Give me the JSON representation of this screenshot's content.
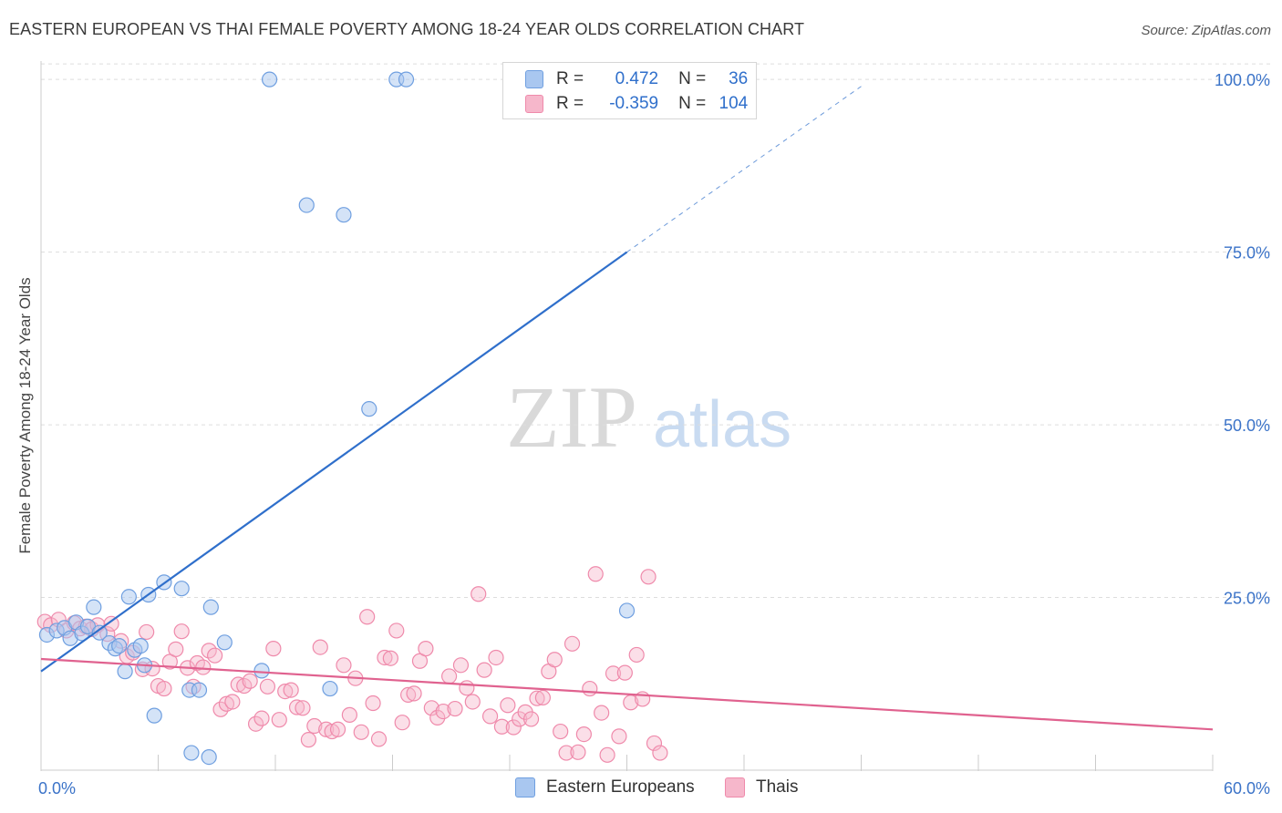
{
  "title": "EASTERN EUROPEAN VS THAI FEMALE POVERTY AMONG 18-24 YEAR OLDS CORRELATION CHART",
  "source": "Source: ZipAtlas.com",
  "watermark": {
    "zip": "ZIP",
    "atlas": "atlas"
  },
  "legend": {
    "rows": [
      {
        "r_label": "R =",
        "r_value": "0.472",
        "n_label": "N =",
        "n_value": "36"
      },
      {
        "r_label": "R =",
        "r_value": "-0.359",
        "n_label": "N =",
        "n_value": "104"
      }
    ]
  },
  "colors": {
    "eastern_fill": "#a9c7f0",
    "eastern_stroke": "#6f9fe0",
    "eastern_line": "#2f6fcb",
    "thai_fill": "#f6b7cb",
    "thai_stroke": "#ef8aab",
    "thai_line": "#e0628f",
    "axis_text": "#3b73c8",
    "grid": "#dddddd"
  },
  "chart_data": {
    "type": "scatter",
    "title": "EASTERN EUROPEAN VS THAI FEMALE POVERTY AMONG 18-24 YEAR OLDS CORRELATION CHART",
    "ylabel": "Female Poverty Among 18-24 Year Olds",
    "xlabel": "",
    "xlim": [
      0,
      60
    ],
    "ylim": [
      0,
      102
    ],
    "x_tick_labels": [
      {
        "value": 0,
        "label": "0.0%"
      },
      {
        "value": 60,
        "label": "60.0%"
      }
    ],
    "y_tick_labels": [
      {
        "value": 25,
        "label": "25.0%"
      },
      {
        "value": 50,
        "label": "50.0%"
      },
      {
        "value": 75,
        "label": "75.0%"
      },
      {
        "value": 100,
        "label": "100.0%"
      }
    ],
    "grid": "horizontal dashed",
    "legend_position": "top-center",
    "series": [
      {
        "name": "Eastern Europeans",
        "R": 0.472,
        "N": 36,
        "trend": {
          "x": [
            0,
            30
          ],
          "y": [
            14.3,
            75
          ],
          "dashed_to": [
            42,
            99
          ]
        },
        "points": [
          [
            0.3,
            19.6
          ],
          [
            0.8,
            20.2
          ],
          [
            1.2,
            20.6
          ],
          [
            1.5,
            19.1
          ],
          [
            1.8,
            21.4
          ],
          [
            2.1,
            19.8
          ],
          [
            2.4,
            20.8
          ],
          [
            2.7,
            23.6
          ],
          [
            3.0,
            19.9
          ],
          [
            3.5,
            18.4
          ],
          [
            3.8,
            17.6
          ],
          [
            4.0,
            18.0
          ],
          [
            4.3,
            14.3
          ],
          [
            4.5,
            25.1
          ],
          [
            4.8,
            17.4
          ],
          [
            5.1,
            18.0
          ],
          [
            5.3,
            15.2
          ],
          [
            5.5,
            25.4
          ],
          [
            5.8,
            7.9
          ],
          [
            6.3,
            27.2
          ],
          [
            7.2,
            26.3
          ],
          [
            7.6,
            11.6
          ],
          [
            7.7,
            2.5
          ],
          [
            8.1,
            11.6
          ],
          [
            8.6,
            1.9
          ],
          [
            8.7,
            23.6
          ],
          [
            9.4,
            18.5
          ],
          [
            11.3,
            14.4
          ],
          [
            11.7,
            100
          ],
          [
            13.6,
            81.8
          ],
          [
            14.8,
            11.8
          ],
          [
            15.5,
            80.4
          ],
          [
            16.8,
            52.3
          ],
          [
            18.2,
            100
          ],
          [
            18.7,
            100
          ],
          [
            30,
            23.1
          ]
        ]
      },
      {
        "name": "Thais",
        "R": -0.359,
        "N": 104,
        "trend": {
          "x": [
            0,
            60
          ],
          "y": [
            16.1,
            5.9
          ]
        },
        "points": [
          [
            0.2,
            21.5
          ],
          [
            0.5,
            21.0
          ],
          [
            0.9,
            21.8
          ],
          [
            1.3,
            20.2
          ],
          [
            1.7,
            21.3
          ],
          [
            2.0,
            20.5
          ],
          [
            2.3,
            20.8
          ],
          [
            2.6,
            20.4
          ],
          [
            2.9,
            21.0
          ],
          [
            3.4,
            19.7
          ],
          [
            3.6,
            21.2
          ],
          [
            4.1,
            18.7
          ],
          [
            4.4,
            16.5
          ],
          [
            4.7,
            17.0
          ],
          [
            5.2,
            14.6
          ],
          [
            5.4,
            20.0
          ],
          [
            5.7,
            14.7
          ],
          [
            6.0,
            12.2
          ],
          [
            6.3,
            11.8
          ],
          [
            6.6,
            15.7
          ],
          [
            6.9,
            17.5
          ],
          [
            7.2,
            20.1
          ],
          [
            7.5,
            14.8
          ],
          [
            7.8,
            12.1
          ],
          [
            8.0,
            15.5
          ],
          [
            8.3,
            14.9
          ],
          [
            8.6,
            17.3
          ],
          [
            8.9,
            16.6
          ],
          [
            9.2,
            8.8
          ],
          [
            9.5,
            9.6
          ],
          [
            9.8,
            9.9
          ],
          [
            10.1,
            12.4
          ],
          [
            10.4,
            12.2
          ],
          [
            10.7,
            12.9
          ],
          [
            11.0,
            6.7
          ],
          [
            11.3,
            7.5
          ],
          [
            11.6,
            12.1
          ],
          [
            11.9,
            17.6
          ],
          [
            12.2,
            7.3
          ],
          [
            12.5,
            11.4
          ],
          [
            12.8,
            11.6
          ],
          [
            13.1,
            9.1
          ],
          [
            13.4,
            9.0
          ],
          [
            13.7,
            4.4
          ],
          [
            14.0,
            6.4
          ],
          [
            14.3,
            17.8
          ],
          [
            14.6,
            5.9
          ],
          [
            14.9,
            5.6
          ],
          [
            15.2,
            5.9
          ],
          [
            15.5,
            15.2
          ],
          [
            15.8,
            8.0
          ],
          [
            16.1,
            13.3
          ],
          [
            16.4,
            5.5
          ],
          [
            16.7,
            22.2
          ],
          [
            17.0,
            9.7
          ],
          [
            17.3,
            4.5
          ],
          [
            17.6,
            16.3
          ],
          [
            17.9,
            16.2
          ],
          [
            18.2,
            20.2
          ],
          [
            18.5,
            6.9
          ],
          [
            18.8,
            10.9
          ],
          [
            19.1,
            11.1
          ],
          [
            19.4,
            15.8
          ],
          [
            19.7,
            17.6
          ],
          [
            20.0,
            9.0
          ],
          [
            20.3,
            7.6
          ],
          [
            20.6,
            8.5
          ],
          [
            20.9,
            13.6
          ],
          [
            21.2,
            8.9
          ],
          [
            21.5,
            15.2
          ],
          [
            21.8,
            11.9
          ],
          [
            22.1,
            9.9
          ],
          [
            22.4,
            25.5
          ],
          [
            22.7,
            14.5
          ],
          [
            23.0,
            7.8
          ],
          [
            23.3,
            16.3
          ],
          [
            23.6,
            6.3
          ],
          [
            23.9,
            9.4
          ],
          [
            24.2,
            6.2
          ],
          [
            24.5,
            7.4
          ],
          [
            24.8,
            8.4
          ],
          [
            25.1,
            7.4
          ],
          [
            25.4,
            10.4
          ],
          [
            25.7,
            10.5
          ],
          [
            26.0,
            14.3
          ],
          [
            26.3,
            16.0
          ],
          [
            26.6,
            5.6
          ],
          [
            26.9,
            2.5
          ],
          [
            27.2,
            18.3
          ],
          [
            27.5,
            2.6
          ],
          [
            27.8,
            5.2
          ],
          [
            28.1,
            11.8
          ],
          [
            28.4,
            28.4
          ],
          [
            28.7,
            8.3
          ],
          [
            29.0,
            2.2
          ],
          [
            29.3,
            14.0
          ],
          [
            29.6,
            4.9
          ],
          [
            29.9,
            14.1
          ],
          [
            30.2,
            9.8
          ],
          [
            30.5,
            16.7
          ],
          [
            30.8,
            10.3
          ],
          [
            31.1,
            28.0
          ],
          [
            31.4,
            3.9
          ],
          [
            31.7,
            2.5
          ]
        ]
      }
    ]
  },
  "bottom_legend": {
    "eastern": "Eastern Europeans",
    "thais": "Thais"
  }
}
